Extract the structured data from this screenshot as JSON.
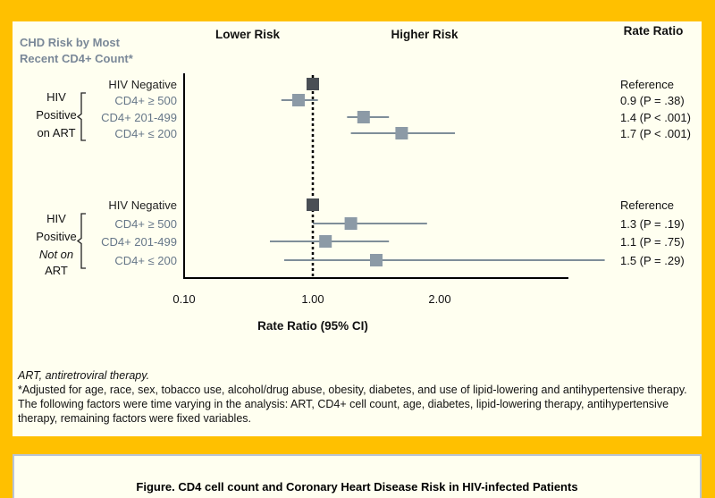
{
  "chart_data": {
    "type": "forest",
    "title_left_line1": "CHD Risk by Most",
    "title_left_line2": "Recent CD4+ Count*",
    "header_lower": "Lower Risk",
    "header_higher": "Higher Risk",
    "header_rate": "Rate Ratio",
    "xlabel": "Rate Ratio (95% CI)",
    "xticks": [
      "0.10",
      "1.00",
      "2.00"
    ],
    "xtick_values": [
      0.1,
      1.0,
      2.0
    ],
    "reference_value": 1.0,
    "colors": {
      "reference_marker": "#4A4F55",
      "marker": "#8C9AA6",
      "ci_line": "#7F8E99",
      "header_blue": "#7A8898"
    },
    "groups": [
      {
        "label_lines": [
          "HIV",
          "Positive",
          "on ART"
        ],
        "rows": [
          {
            "label": "HIV Negative",
            "estimate": 1.0,
            "ci": null,
            "reference": true,
            "value_label": "Reference"
          },
          {
            "label": "CD4+ ≥ 500",
            "estimate": 0.9,
            "ci": [
              0.78,
              1.04
            ],
            "value_label": "0.9 (P = .38)"
          },
          {
            "label": "CD4+ 201-499",
            "estimate": 1.4,
            "ci": [
              1.27,
              1.6
            ],
            "value_label": "1.4 (P < .001)"
          },
          {
            "label": "CD4+ ≤ 200",
            "estimate": 1.7,
            "ci": [
              1.3,
              2.12
            ],
            "value_label": "1.7 (P < .001)"
          }
        ]
      },
      {
        "label_lines": [
          "HIV",
          "Positive",
          "Not on",
          "ART"
        ],
        "rows": [
          {
            "label": "HIV Negative",
            "estimate": 1.0,
            "ci": null,
            "reference": true,
            "value_label": "Reference"
          },
          {
            "label": "CD4+ ≥ 500",
            "estimate": 1.3,
            "ci": [
              1.0,
              1.9
            ],
            "value_label": "1.3 (P = .19)"
          },
          {
            "label": "CD4+ 201-499",
            "estimate": 1.1,
            "ci": [
              0.7,
              1.6
            ],
            "value_label": "1.1 (P = .75)"
          },
          {
            "label": "CD4+ ≤ 200",
            "estimate": 1.5,
            "ci": [
              0.8,
              3.3
            ],
            "value_label": "1.5 (P = .29)"
          }
        ]
      }
    ]
  },
  "footnotes": {
    "abbreviation": "ART, antiretroviral therapy.",
    "note": "*Adjusted for age, race, sex, tobacco use, alcohol/drug abuse, obesity, diabetes, and use of lipid-lowering and antihypertensive therapy. The following factors were time varying in the analysis: ART, CD4+ cell count, age, diabetes, lipid-lowering therapy, antihypertensive therapy, remaining factors were fixed variables."
  },
  "caption": "Figure. CD4 cell count and Coronary Heart Disease Risk in HIV-infected Patients"
}
